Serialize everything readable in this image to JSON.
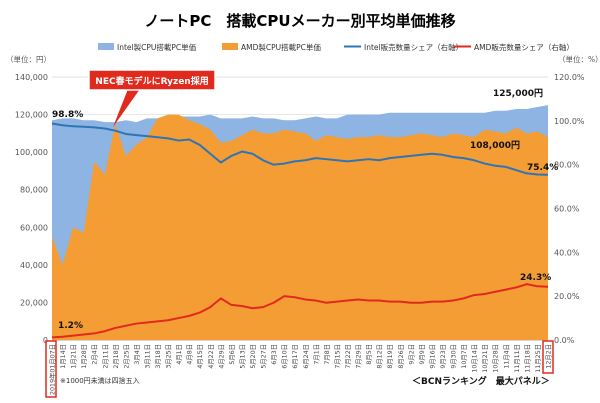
{
  "chart_data": {
    "type": "area",
    "title": "ノートPC　搭載CPUメーカー別平均単価推移",
    "left_unit": "（単位：円）",
    "right_unit": "（単位：%）",
    "ylim_left": [
      0,
      140000
    ],
    "ylim_right": [
      0,
      120
    ],
    "left_ticks": [
      "0",
      "20,000",
      "40,000",
      "60,000",
      "80,000",
      "100,000",
      "120,000",
      "140,000"
    ],
    "right_ticks": [
      "0.0%",
      "20.0%",
      "40.0%",
      "60.0%",
      "80.0%",
      "100.0%",
      "120.0%"
    ],
    "categories": [
      "2019年01月07日",
      "1月14日",
      "1月21日",
      "1月28日",
      "2月4日",
      "2月11日",
      "2月18日",
      "2月25日",
      "3月4日",
      "3月11日",
      "3月18日",
      "3月25日",
      "4月1日",
      "4月8日",
      "4月15日",
      "4月22日",
      "4月29日",
      "5月6日",
      "5月13日",
      "5月20日",
      "5月27日",
      "6月3日",
      "6月10日",
      "6月17日",
      "6月24日",
      "7月1日",
      "7月8日",
      "7月15日",
      "7月22日",
      "7月29日",
      "8月5日",
      "8月12日",
      "8月19日",
      "8月26日",
      "9月2日",
      "9月9日",
      "9月16日",
      "9月23日",
      "9月30日",
      "10月7日",
      "10月14日",
      "10月21日",
      "10月28日",
      "11月4日",
      "11月11日",
      "11月18日",
      "11月25日",
      "12月2日"
    ],
    "series": [
      {
        "name": "Intel製CPU搭載PC単価",
        "color": "#8db4e2",
        "axis": "left",
        "kind": "area",
        "values": [
          117000,
          118000,
          118000,
          117000,
          117000,
          116000,
          116000,
          117000,
          116000,
          118000,
          118000,
          118000,
          119000,
          119000,
          119000,
          120000,
          118000,
          118000,
          118000,
          119000,
          118000,
          118000,
          117000,
          117000,
          118000,
          119000,
          118000,
          118000,
          120000,
          120000,
          120000,
          120000,
          121000,
          121000,
          121000,
          121000,
          121000,
          121000,
          121000,
          121000,
          121000,
          121000,
          122000,
          122000,
          123000,
          123000,
          124000,
          125000
        ]
      },
      {
        "name": "AMD製CPU搭載PC単価",
        "color": "#f59d35",
        "axis": "left",
        "kind": "area",
        "values": [
          55000,
          40000,
          60000,
          57000,
          95000,
          88000,
          115000,
          98000,
          104000,
          108000,
          118000,
          120000,
          120000,
          117000,
          115000,
          112000,
          105000,
          106000,
          109000,
          112000,
          110000,
          110000,
          112000,
          111000,
          110000,
          106000,
          109000,
          108000,
          107000,
          108000,
          108000,
          109000,
          108000,
          108000,
          109000,
          110000,
          109000,
          108000,
          110000,
          109000,
          108000,
          112000,
          111000,
          110000,
          113000,
          110000,
          111000,
          108000
        ]
      },
      {
        "name": "Intel販売数量シェア（右軸）",
        "color": "#2f74b5",
        "axis": "right",
        "kind": "line",
        "values": [
          98.8,
          98.0,
          97.5,
          97.3,
          97.0,
          96.5,
          95.5,
          94.0,
          93.5,
          93.0,
          92.5,
          92.0,
          91.0,
          91.5,
          89.0,
          85.0,
          81.0,
          84.0,
          86.0,
          85.0,
          82.0,
          80.0,
          80.5,
          81.5,
          82.0,
          83.0,
          82.5,
          82.0,
          81.5,
          82.0,
          82.5,
          82.0,
          83.0,
          83.5,
          84.0,
          84.5,
          85.0,
          84.5,
          83.5,
          83.0,
          82.0,
          80.5,
          79.5,
          79.0,
          77.5,
          76.0,
          75.5,
          75.4
        ]
      },
      {
        "name": "AMD販売数量シェア（右軸）",
        "color": "#e02a1e",
        "axis": "right",
        "kind": "line",
        "values": [
          1.2,
          1.5,
          2.0,
          2.5,
          3.0,
          4.0,
          5.5,
          6.5,
          7.5,
          8.0,
          8.5,
          9.0,
          10.0,
          11.0,
          12.5,
          15.0,
          19.0,
          16.0,
          15.5,
          14.5,
          15.0,
          17.0,
          20.0,
          19.5,
          18.5,
          18.0,
          17.0,
          17.5,
          18.0,
          18.5,
          18.0,
          18.0,
          17.5,
          17.5,
          17.0,
          17.0,
          17.5,
          17.5,
          18.0,
          19.0,
          20.5,
          21.0,
          22.0,
          23.0,
          24.0,
          25.5,
          24.5,
          24.3
        ]
      }
    ],
    "legend_position": "top",
    "annotations": {
      "intel_start_share": "98.8%",
      "amd_start_share": "1.2%",
      "intel_end_price": "125,000円",
      "amd_end_price": "108,000円",
      "intel_end_share": "75.4%",
      "amd_end_share": "24.3%",
      "callout": "NEC春モデルにRyzen採用",
      "footnote": "※1000円未満は四捨五入",
      "source": "＜BCNランキング　最大パネル＞"
    }
  }
}
